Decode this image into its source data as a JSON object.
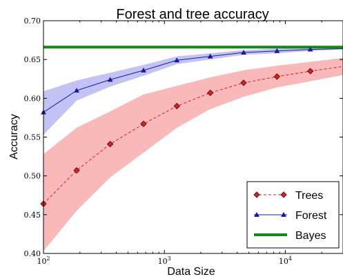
{
  "chart_data": {
    "type": "line",
    "title": "Forest and tree accuracy",
    "xlabel": "Data Size",
    "ylabel": "Accuracy",
    "x_scale": "log",
    "xlim": [
      100,
      30000
    ],
    "ylim": [
      0.4,
      0.7
    ],
    "y_ticks": [
      "0.40",
      "0.45",
      "0.50",
      "0.55",
      "0.60",
      "0.65",
      "0.70"
    ],
    "x_ticks": [
      {
        "value": 100,
        "base": "10",
        "exp": "2"
      },
      {
        "value": 1000,
        "base": "10",
        "exp": "3"
      },
      {
        "value": 10000,
        "base": "10",
        "exp": "4"
      }
    ],
    "grid": false,
    "legend_position": "lower-right",
    "x": [
      100,
      188,
      356,
      672,
      1268,
      2394,
      4520,
      8532,
      16107,
      30000
    ],
    "series": [
      {
        "name": "Trees",
        "color": "#e41a1c",
        "band_color": "#f7a1a1",
        "marker": "diamond",
        "line_style": "dashed",
        "values": [
          0.464,
          0.507,
          0.541,
          0.567,
          0.59,
          0.607,
          0.62,
          0.628,
          0.635,
          0.641
        ],
        "lower": [
          0.403,
          0.455,
          0.498,
          0.53,
          0.562,
          0.586,
          0.602,
          0.614,
          0.622,
          0.63
        ],
        "upper": [
          0.528,
          0.562,
          0.583,
          0.605,
          0.616,
          0.627,
          0.636,
          0.642,
          0.647,
          0.652
        ]
      },
      {
        "name": "Forest",
        "color": "#1a1aa0",
        "band_color": "#aeaef2",
        "marker": "triangle",
        "line_style": "solid",
        "values": [
          0.582,
          0.61,
          0.624,
          0.636,
          0.649,
          0.654,
          0.659,
          0.661,
          0.663,
          0.664
        ],
        "lower": [
          0.553,
          0.597,
          0.615,
          0.629,
          0.644,
          0.65,
          0.656,
          0.658,
          0.661,
          0.663
        ],
        "upper": [
          0.609,
          0.623,
          0.633,
          0.643,
          0.654,
          0.658,
          0.662,
          0.664,
          0.665,
          0.665
        ]
      },
      {
        "name": "Bayes",
        "color": "#148a14",
        "line_style": "solid",
        "constant": 0.666
      }
    ]
  }
}
